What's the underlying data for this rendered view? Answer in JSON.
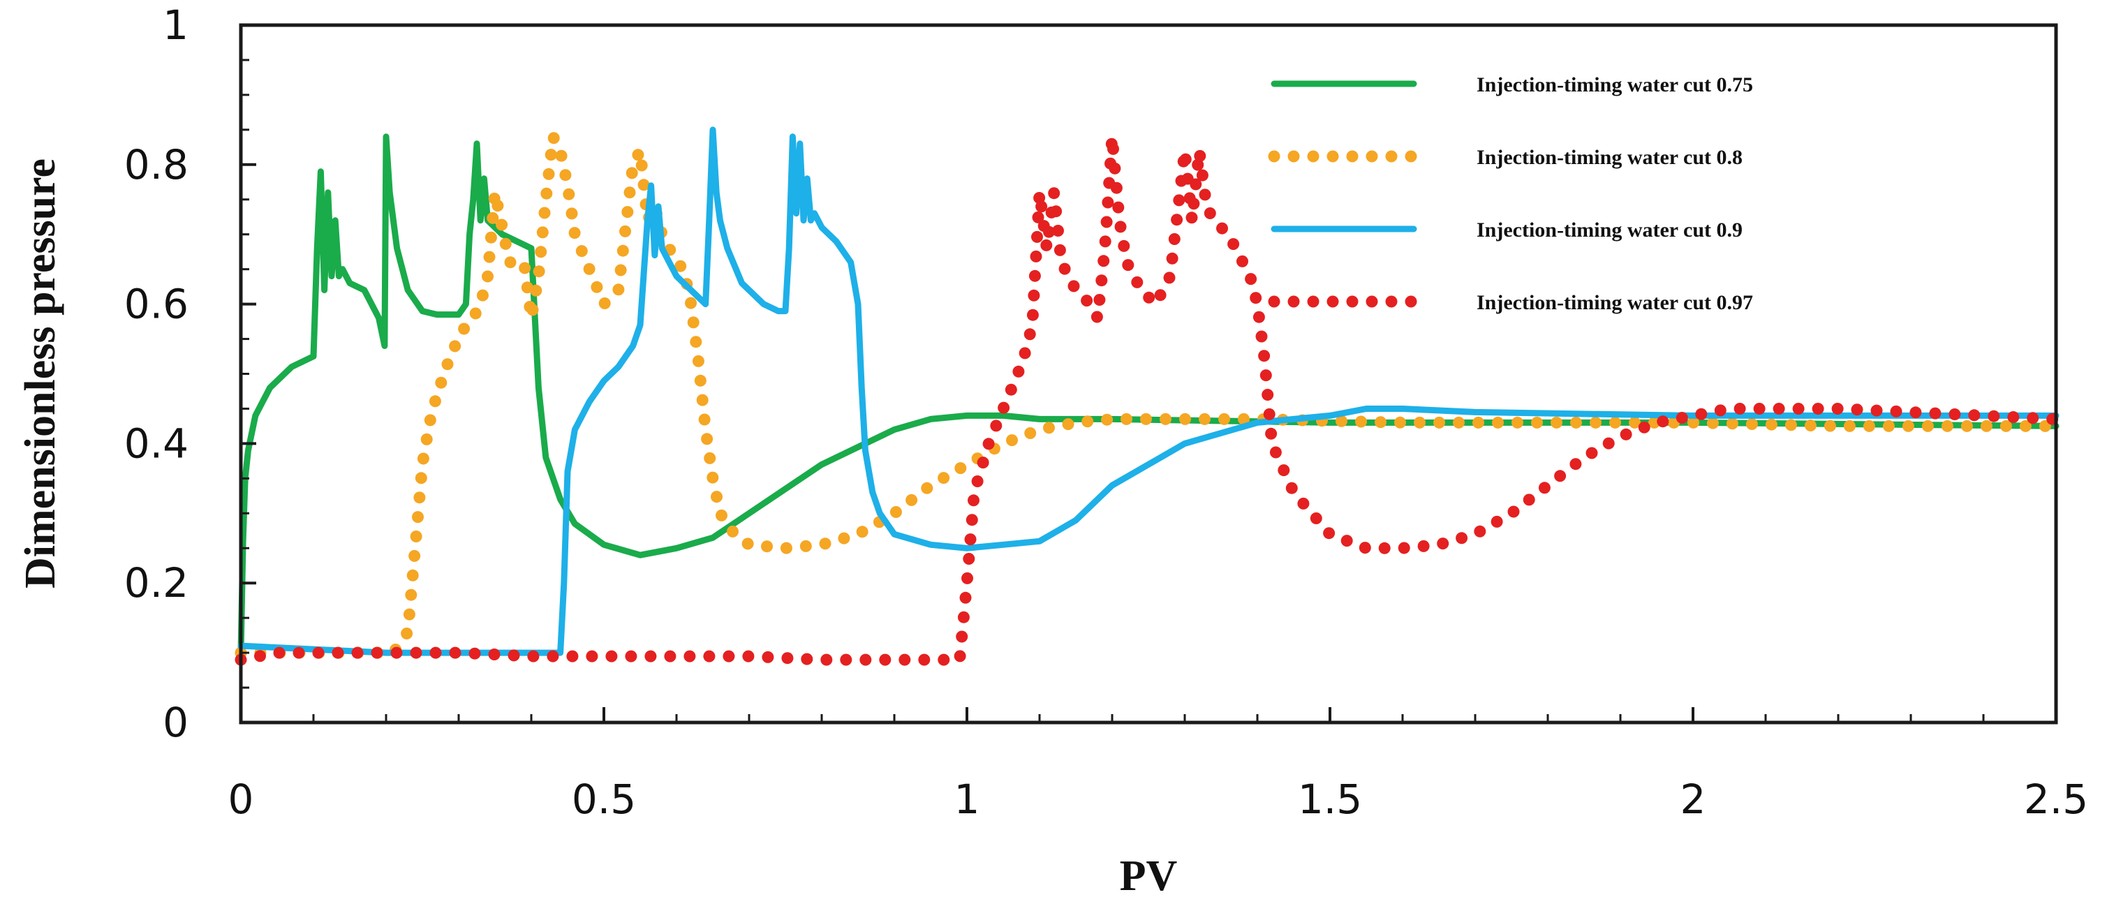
{
  "chart_data": {
    "type": "line",
    "title": "",
    "xlabel": "PV",
    "ylabel": "Dimensionless pressure",
    "xlim": [
      0,
      2.5
    ],
    "ylim": [
      0,
      1
    ],
    "xticks": [
      0,
      0.5,
      1,
      1.5,
      2,
      2.5
    ],
    "xtick_labels": [
      "0",
      "0.5",
      "1",
      "1.5",
      "2",
      "2.5"
    ],
    "yticks": [
      0,
      0.2,
      0.4,
      0.6,
      0.8,
      1
    ],
    "ytick_labels": [
      "0",
      "0.2",
      "0.4",
      "0.6",
      "0.8",
      "1"
    ],
    "grid": false,
    "legend_position": "top-right",
    "series": [
      {
        "name": "Injection-timing water cut 0.75",
        "color": "#1aab4b",
        "style": "solid",
        "x": [
          0,
          0.003,
          0.006,
          0.01,
          0.02,
          0.04,
          0.07,
          0.1,
          0.105,
          0.11,
          0.115,
          0.12,
          0.125,
          0.13,
          0.135,
          0.14,
          0.15,
          0.17,
          0.19,
          0.198,
          0.2,
          0.205,
          0.215,
          0.23,
          0.25,
          0.27,
          0.3,
          0.31,
          0.315,
          0.32,
          0.325,
          0.33,
          0.335,
          0.34,
          0.35,
          0.36,
          0.38,
          0.4,
          0.405,
          0.41,
          0.42,
          0.44,
          0.46,
          0.5,
          0.55,
          0.6,
          0.65,
          0.7,
          0.8,
          0.9,
          0.95,
          1.0,
          1.05,
          1.1,
          1.2,
          1.5,
          2.0,
          2.5
        ],
        "y": [
          0.1,
          0.26,
          0.35,
          0.39,
          0.44,
          0.48,
          0.51,
          0.525,
          0.68,
          0.79,
          0.62,
          0.76,
          0.64,
          0.72,
          0.64,
          0.65,
          0.63,
          0.62,
          0.58,
          0.54,
          0.84,
          0.76,
          0.68,
          0.62,
          0.59,
          0.585,
          0.585,
          0.6,
          0.7,
          0.75,
          0.83,
          0.72,
          0.78,
          0.72,
          0.71,
          0.7,
          0.69,
          0.68,
          0.58,
          0.48,
          0.38,
          0.32,
          0.285,
          0.255,
          0.24,
          0.25,
          0.265,
          0.3,
          0.37,
          0.42,
          0.435,
          0.44,
          0.44,
          0.435,
          0.435,
          0.43,
          0.43,
          0.425
        ]
      },
      {
        "name": "Injection-timing water cut 0.8",
        "color": "#f5a623",
        "style": "dotted",
        "x": [
          0,
          0.03,
          0.06,
          0.09,
          0.12,
          0.15,
          0.18,
          0.21,
          0.23,
          0.24,
          0.25,
          0.26,
          0.27,
          0.28,
          0.29,
          0.3,
          0.31,
          0.32,
          0.33,
          0.34,
          0.35,
          0.36,
          0.37,
          0.38,
          0.39,
          0.4,
          0.41,
          0.42,
          0.43,
          0.44,
          0.45,
          0.46,
          0.48,
          0.5,
          0.52,
          0.53,
          0.54,
          0.55,
          0.56,
          0.57,
          0.58,
          0.59,
          0.6,
          0.61,
          0.62,
          0.63,
          0.64,
          0.65,
          0.66,
          0.68,
          0.7,
          0.75,
          0.8,
          0.85,
          0.9,
          0.95,
          1.0,
          1.05,
          1.1,
          1.15,
          1.2,
          1.3,
          1.4,
          1.6,
          1.8,
          2.0,
          2.2,
          2.4,
          2.5
        ],
        "y": [
          0.1,
          0.1,
          0.1,
          0.1,
          0.1,
          0.1,
          0.1,
          0.1,
          0.13,
          0.25,
          0.37,
          0.43,
          0.47,
          0.5,
          0.53,
          0.55,
          0.57,
          0.58,
          0.6,
          0.64,
          0.76,
          0.71,
          0.66,
          0.66,
          0.66,
          0.58,
          0.64,
          0.75,
          0.84,
          0.82,
          0.77,
          0.7,
          0.65,
          0.6,
          0.62,
          0.71,
          0.8,
          0.82,
          0.72,
          0.74,
          0.7,
          0.68,
          0.66,
          0.65,
          0.6,
          0.52,
          0.42,
          0.35,
          0.3,
          0.27,
          0.255,
          0.25,
          0.255,
          0.27,
          0.3,
          0.34,
          0.37,
          0.4,
          0.42,
          0.43,
          0.435,
          0.435,
          0.435,
          0.43,
          0.43,
          0.43,
          0.425,
          0.425,
          0.425
        ]
      },
      {
        "name": "Injection-timing water cut 0.9",
        "color": "#1eb0e8",
        "style": "solid",
        "x": [
          0,
          0.1,
          0.2,
          0.3,
          0.4,
          0.44,
          0.445,
          0.45,
          0.46,
          0.48,
          0.5,
          0.52,
          0.54,
          0.55,
          0.56,
          0.565,
          0.57,
          0.575,
          0.58,
          0.59,
          0.6,
          0.62,
          0.64,
          0.645,
          0.65,
          0.655,
          0.66,
          0.67,
          0.69,
          0.72,
          0.74,
          0.75,
          0.755,
          0.76,
          0.765,
          0.77,
          0.775,
          0.78,
          0.785,
          0.79,
          0.8,
          0.82,
          0.84,
          0.85,
          0.855,
          0.86,
          0.87,
          0.88,
          0.9,
          0.95,
          1.0,
          1.05,
          1.1,
          1.15,
          1.2,
          1.3,
          1.4,
          1.5,
          1.55,
          1.6,
          1.7,
          2.0,
          2.5
        ],
        "y": [
          0.11,
          0.105,
          0.1,
          0.1,
          0.1,
          0.1,
          0.2,
          0.36,
          0.42,
          0.46,
          0.49,
          0.51,
          0.54,
          0.57,
          0.72,
          0.77,
          0.67,
          0.74,
          0.68,
          0.66,
          0.64,
          0.62,
          0.6,
          0.72,
          0.85,
          0.76,
          0.72,
          0.68,
          0.63,
          0.6,
          0.59,
          0.59,
          0.68,
          0.84,
          0.73,
          0.83,
          0.72,
          0.78,
          0.72,
          0.73,
          0.71,
          0.69,
          0.66,
          0.6,
          0.48,
          0.39,
          0.33,
          0.3,
          0.27,
          0.255,
          0.25,
          0.255,
          0.26,
          0.29,
          0.34,
          0.4,
          0.43,
          0.44,
          0.45,
          0.45,
          0.445,
          0.44,
          0.44
        ]
      },
      {
        "name": "Injection-timing water cut 0.97",
        "color": "#e52020",
        "style": "dotted",
        "x": [
          0,
          0.05,
          0.1,
          0.2,
          0.3,
          0.4,
          0.5,
          0.6,
          0.7,
          0.8,
          0.9,
          0.99,
          1.0,
          1.01,
          1.03,
          1.05,
          1.07,
          1.08,
          1.09,
          1.1,
          1.11,
          1.12,
          1.13,
          1.14,
          1.15,
          1.17,
          1.18,
          1.19,
          1.2,
          1.21,
          1.22,
          1.24,
          1.26,
          1.28,
          1.3,
          1.31,
          1.32,
          1.33,
          1.34,
          1.35,
          1.36,
          1.37,
          1.38,
          1.39,
          1.4,
          1.41,
          1.42,
          1.45,
          1.5,
          1.55,
          1.6,
          1.65,
          1.7,
          1.75,
          1.8,
          1.85,
          1.9,
          1.95,
          2.0,
          2.05,
          2.1,
          2.2,
          2.3,
          2.4,
          2.5
        ],
        "y": [
          0.09,
          0.1,
          0.1,
          0.1,
          0.1,
          0.095,
          0.095,
          0.095,
          0.095,
          0.09,
          0.09,
          0.09,
          0.2,
          0.33,
          0.4,
          0.45,
          0.5,
          0.53,
          0.57,
          0.76,
          0.68,
          0.76,
          0.66,
          0.64,
          0.62,
          0.6,
          0.58,
          0.68,
          0.84,
          0.72,
          0.66,
          0.62,
          0.6,
          0.64,
          0.82,
          0.72,
          0.82,
          0.74,
          0.72,
          0.71,
          0.7,
          0.68,
          0.66,
          0.64,
          0.6,
          0.52,
          0.4,
          0.33,
          0.27,
          0.25,
          0.25,
          0.255,
          0.27,
          0.3,
          0.34,
          0.38,
          0.41,
          0.43,
          0.44,
          0.45,
          0.45,
          0.45,
          0.445,
          0.44,
          0.435
        ]
      }
    ]
  }
}
